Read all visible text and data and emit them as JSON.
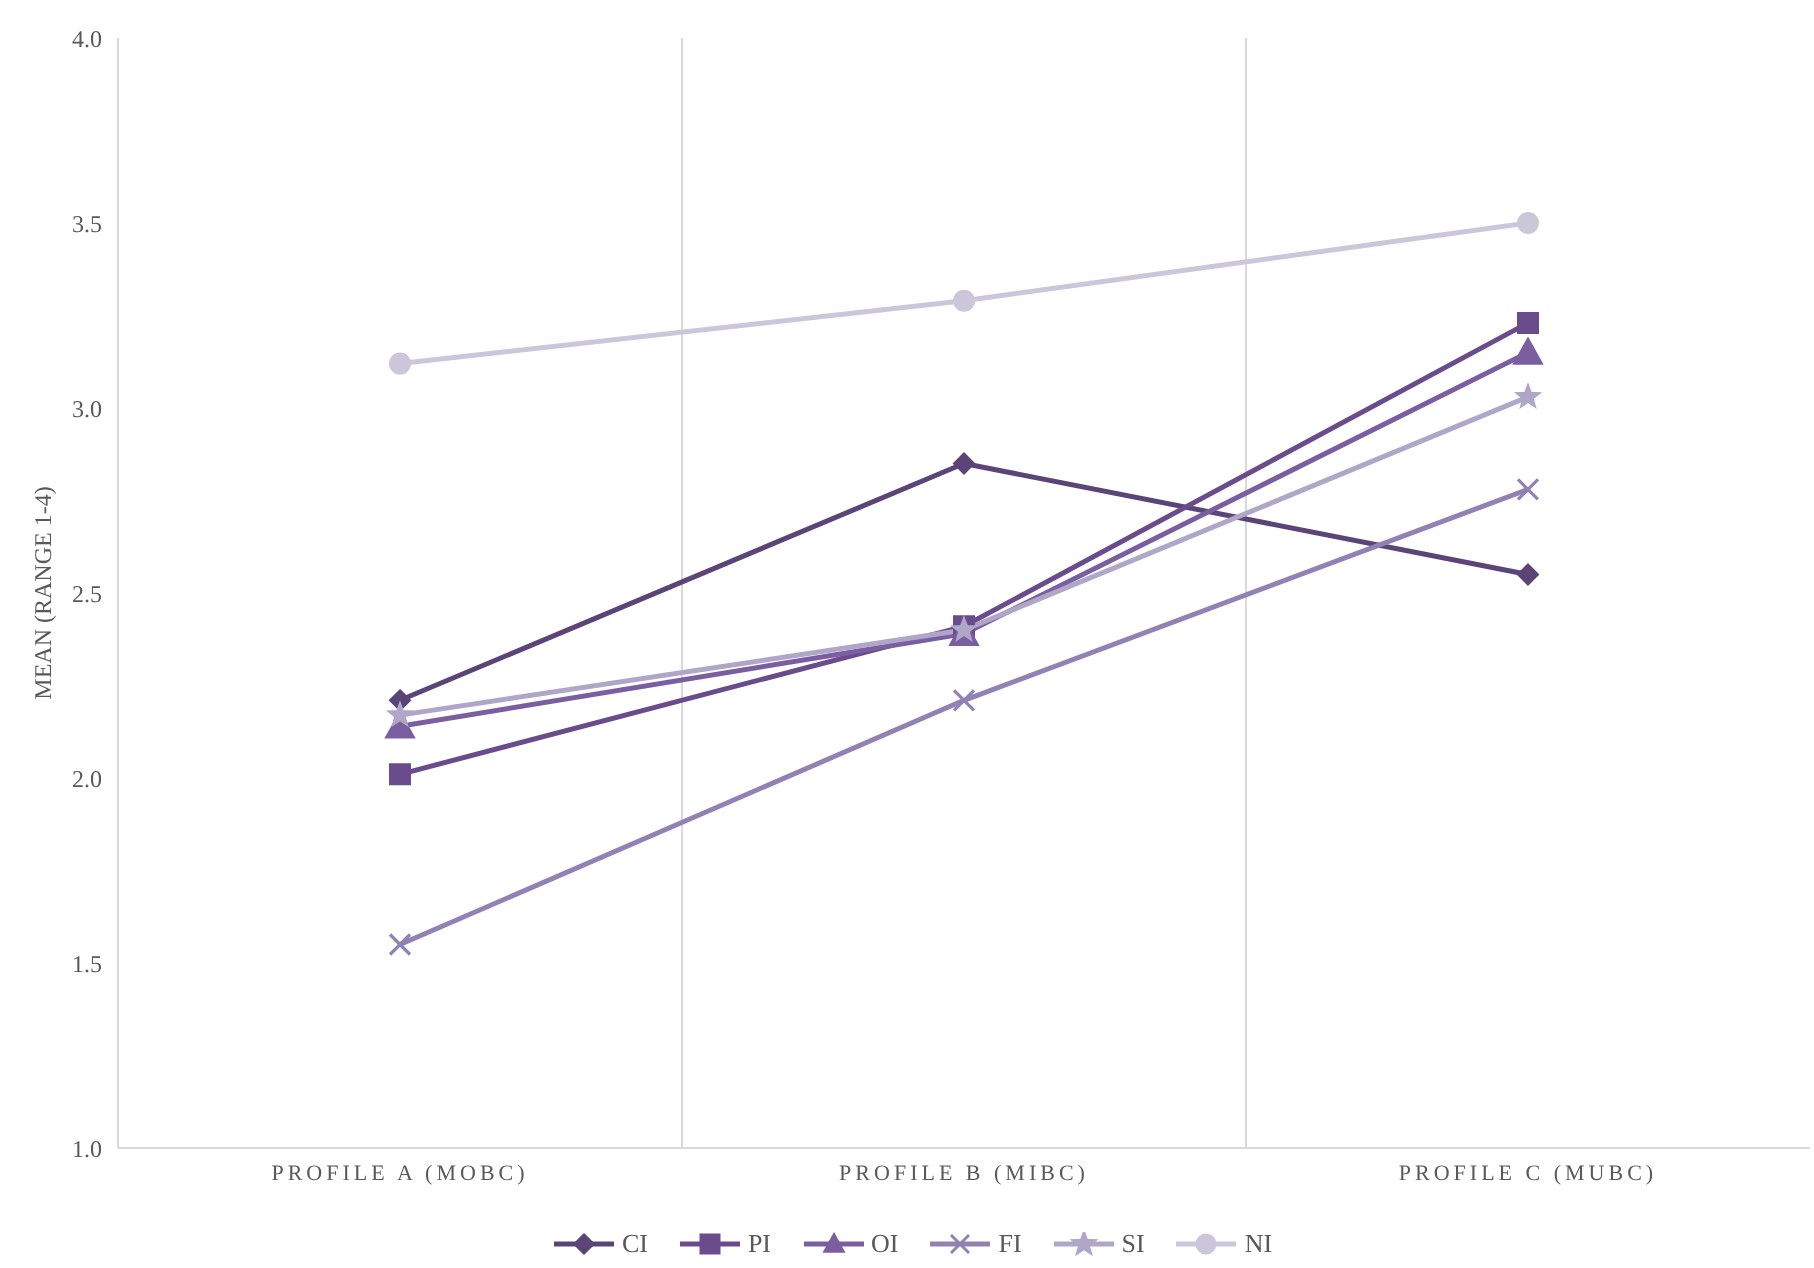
{
  "chart_data": {
    "type": "line",
    "ylabel": "MEAN (RANGE 1-4)",
    "categories": [
      "PROFILE A (MOBC)",
      "PROFILE B (MIBC)",
      "PROFILE C (MUBC)"
    ],
    "series": [
      {
        "name": "CI",
        "color": "#5b4477",
        "marker": "diamond",
        "values": [
          2.21,
          2.85,
          2.55
        ]
      },
      {
        "name": "PI",
        "color": "#6a4c8c",
        "marker": "square",
        "values": [
          2.01,
          2.41,
          3.23
        ]
      },
      {
        "name": "OI",
        "color": "#7b5ea0",
        "marker": "triangle",
        "values": [
          2.14,
          2.39,
          3.15
        ]
      },
      {
        "name": "FI",
        "color": "#9282b4",
        "marker": "cross",
        "values": [
          1.55,
          2.21,
          2.78
        ]
      },
      {
        "name": "SI",
        "color": "#b0a6c8",
        "marker": "star",
        "values": [
          2.17,
          2.4,
          3.03
        ]
      },
      {
        "name": "NI",
        "color": "#cbc6da",
        "marker": "circle",
        "values": [
          3.12,
          3.29,
          3.5
        ]
      }
    ],
    "ylim": [
      1,
      4
    ],
    "yticks": [
      {
        "value": 1,
        "label": "1.0"
      },
      {
        "value": 1.5,
        "label": "1.5"
      },
      {
        "value": 2,
        "label": "2.0"
      },
      {
        "value": 2.5,
        "label": "2.5"
      },
      {
        "value": 3,
        "label": "3.0"
      },
      {
        "value": 3.5,
        "label": "3.5"
      },
      {
        "value": 4,
        "label": "4.0"
      }
    ],
    "legend": "bottom",
    "line_style": "solid"
  }
}
